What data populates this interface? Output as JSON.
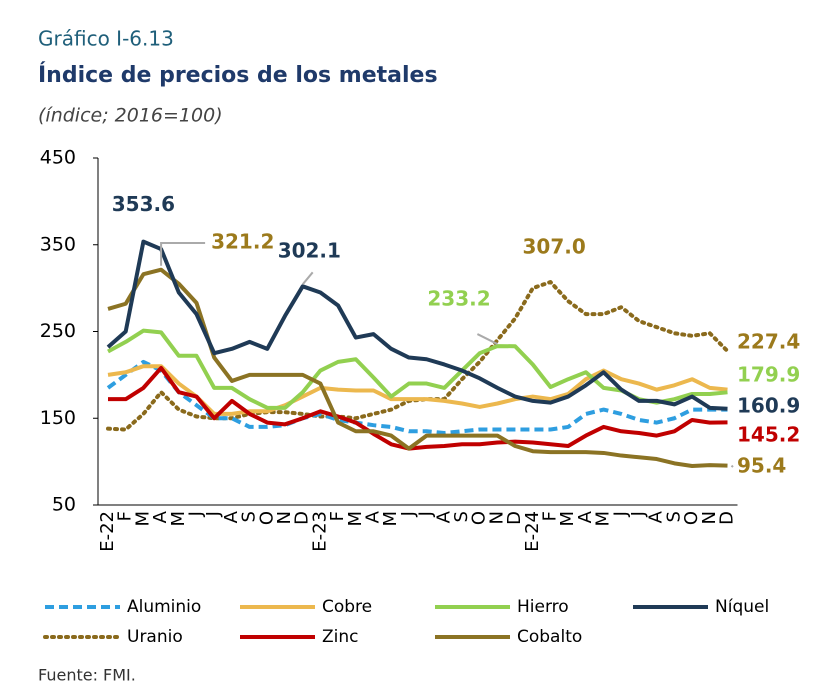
{
  "chart_data": {
    "type": "line",
    "kicker": "Gráfico I-6.13",
    "title": "Índice de precios de los metales",
    "subtitle": "(índice; 2016=100)",
    "source": "Fuente: FMI.",
    "categories": [
      "E-22",
      "F",
      "M",
      "A",
      "M",
      "J",
      "J",
      "A",
      "S",
      "O",
      "N",
      "D",
      "E-23",
      "F",
      "M",
      "A",
      "M",
      "J",
      "J",
      "A",
      "S",
      "O",
      "N",
      "D",
      "E-24",
      "F",
      "M",
      "A",
      "M",
      "J",
      "J",
      "A",
      "S",
      "O",
      "N",
      "D"
    ],
    "ylim": [
      50,
      450
    ],
    "yticks": [
      50,
      150,
      250,
      350,
      450
    ],
    "grid": false,
    "series": [
      {
        "name": "Aluminio",
        "color": "#2e9ee0",
        "dash": "dashed",
        "values": [
          185,
          200,
          215,
          205,
          180,
          165,
          150,
          150,
          140,
          140,
          142,
          150,
          155,
          148,
          145,
          142,
          140,
          135,
          135,
          133,
          135,
          137,
          137,
          137,
          137,
          137,
          140,
          155,
          160,
          155,
          148,
          145,
          150,
          160,
          160,
          160
        ]
      },
      {
        "name": "Cobre",
        "color": "#ecb84e",
        "dash": "solid",
        "values": [
          200,
          203,
          210,
          210,
          190,
          175,
          155,
          155,
          158,
          158,
          165,
          175,
          185,
          183,
          182,
          182,
          172,
          172,
          172,
          170,
          167,
          163,
          167,
          172,
          175,
          172,
          178,
          195,
          205,
          195,
          190,
          183,
          188,
          195,
          185,
          183
        ]
      },
      {
        "name": "Hierro",
        "color": "#92d050",
        "dash": "solid",
        "values": [
          227,
          238,
          251,
          249,
          222,
          222,
          185,
          185,
          172,
          162,
          162,
          180,
          205,
          215,
          218,
          197,
          175,
          190,
          190,
          185,
          205,
          225,
          233.2,
          233,
          212,
          186,
          195,
          203,
          185,
          182,
          172,
          168,
          172,
          178,
          178,
          179.9
        ],
        "value_labels": [
          null,
          null,
          null,
          null,
          null,
          null,
          null,
          null,
          null,
          null,
          null,
          null,
          null,
          null,
          null,
          null,
          null,
          null,
          null,
          null,
          null,
          null,
          "233.2",
          null,
          null,
          null,
          null,
          null,
          null,
          null,
          null,
          null,
          null,
          null,
          null,
          "179.9"
        ]
      },
      {
        "name": "Níquel",
        "color": "#1f3a56",
        "dash": "solid",
        "values": [
          232,
          250,
          353.6,
          345,
          295,
          270,
          225,
          230,
          238,
          230,
          268,
          302.1,
          295,
          280,
          243,
          247,
          230,
          220,
          218,
          212,
          205,
          196,
          185,
          175,
          170,
          168,
          175,
          188,
          203,
          183,
          170,
          170,
          166,
          175,
          162,
          160.9
        ],
        "value_labels": [
          null,
          null,
          "353.6",
          null,
          null,
          null,
          null,
          null,
          null,
          null,
          null,
          "302.1",
          null,
          null,
          null,
          null,
          null,
          null,
          null,
          null,
          null,
          null,
          null,
          null,
          null,
          null,
          null,
          null,
          null,
          null,
          null,
          null,
          null,
          null,
          null,
          "160.9"
        ]
      },
      {
        "name": "Uranio",
        "color": "#8a6a1c",
        "dash": "dotted",
        "values": [
          138,
          137,
          155,
          180,
          160,
          152,
          150,
          150,
          155,
          157,
          157,
          155,
          152,
          152,
          150,
          155,
          160,
          170,
          172,
          172,
          195,
          215,
          240,
          265,
          300,
          307.0,
          285,
          270,
          270,
          278,
          262,
          255,
          248,
          245,
          248,
          227.4
        ],
        "value_labels": [
          null,
          null,
          null,
          null,
          null,
          null,
          null,
          null,
          null,
          null,
          null,
          null,
          null,
          null,
          null,
          null,
          null,
          null,
          null,
          null,
          null,
          null,
          null,
          null,
          null,
          "307.0",
          null,
          null,
          null,
          null,
          null,
          null,
          null,
          null,
          null,
          "227.4"
        ]
      },
      {
        "name": "Zinc",
        "color": "#c00000",
        "dash": "solid",
        "values": [
          172,
          172,
          185,
          208,
          180,
          175,
          150,
          170,
          155,
          145,
          143,
          150,
          158,
          152,
          145,
          132,
          120,
          115,
          117,
          118,
          120,
          120,
          122,
          123,
          122,
          120,
          118,
          130,
          140,
          135,
          133,
          130,
          135,
          148,
          145,
          145.2
        ],
        "value_labels": [
          null,
          null,
          null,
          null,
          null,
          null,
          null,
          null,
          null,
          null,
          null,
          null,
          null,
          null,
          null,
          null,
          null,
          null,
          null,
          null,
          null,
          null,
          null,
          null,
          null,
          null,
          null,
          null,
          null,
          null,
          null,
          null,
          null,
          null,
          null,
          "145.2"
        ]
      },
      {
        "name": "Cobalto",
        "color": "#8b7324",
        "dash": "solid",
        "values": [
          276,
          282,
          316,
          321.2,
          305,
          283,
          220,
          193,
          200,
          200,
          200,
          200,
          190,
          145,
          135,
          135,
          130,
          115,
          130,
          130,
          130,
          130,
          130,
          118,
          112,
          111,
          111,
          111,
          110,
          107,
          105,
          103,
          98,
          95,
          96,
          95.4
        ],
        "value_labels": [
          null,
          null,
          null,
          "321.2",
          null,
          null,
          null,
          null,
          null,
          null,
          null,
          null,
          null,
          null,
          null,
          null,
          null,
          null,
          null,
          null,
          null,
          null,
          null,
          null,
          null,
          null,
          null,
          null,
          null,
          null,
          null,
          null,
          null,
          null,
          null,
          "95.4"
        ]
      }
    ]
  }
}
